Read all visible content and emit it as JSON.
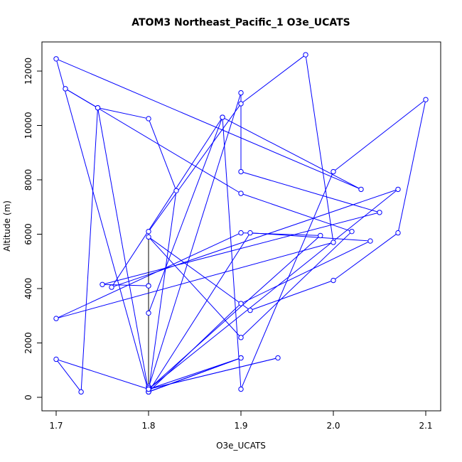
{
  "chart_data": {
    "type": "line",
    "title": "ATOM3 Northeast_Pacific_1 O3e_UCATS",
    "xlabel": "O3e_UCATS",
    "ylabel": "Altitude (m)",
    "xlim": [
      1.7,
      2.1
    ],
    "ylim": [
      0,
      12500
    ],
    "x_ticks": [
      1.7,
      1.8,
      1.9,
      2.0,
      2.1
    ],
    "x_tick_labels": [
      "1.7",
      "1.8",
      "1.9",
      "2.0",
      "2.1"
    ],
    "y_ticks": [
      0,
      2000,
      4000,
      6000,
      8000,
      10000,
      12000
    ],
    "y_tick_labels": [
      "0",
      "2000",
      "4000",
      "6000",
      "8000",
      "10000",
      "12000"
    ],
    "grid": false,
    "legend": "none",
    "marker": "open-circle",
    "colors": {
      "series": "#0000ff",
      "vertical_segment": "#000000",
      "frame": "#000000"
    },
    "series": [
      {
        "x": [
          1.8,
          1.8,
          1.8,
          1.8,
          1.9,
          1.8,
          1.8,
          1.75,
          2.05,
          1.9,
          1.9,
          1.8,
          1.8,
          1.88,
          1.76,
          2.07,
          1.8,
          1.7,
          1.727,
          1.745,
          1.8,
          1.83,
          1.8,
          1.9,
          2.04,
          1.91,
          1.8,
          1.7,
          2.03,
          1.88,
          1.9,
          2.0,
          2.1,
          2.07,
          2.0,
          1.91,
          1.8,
          1.9,
          2.02,
          1.9,
          1.71,
          1.745,
          1.8,
          1.9,
          1.8,
          1.94,
          1.8,
          1.986,
          1.9,
          1.7,
          2.0,
          1.97,
          1.9,
          1.8,
          1.8
        ],
        "y": [
          200,
          300,
          400,
          200,
          1450,
          200,
          4100,
          4150,
          6800,
          8300,
          11200,
          350,
          3100,
          10300,
          4050,
          7650,
          300,
          1400,
          200,
          10650,
          10250,
          7600,
          200,
          3450,
          5750,
          6050,
          200,
          12450,
          7650,
          10300,
          300,
          8300,
          10950,
          6050,
          4300,
          3200,
          5900,
          2200,
          6100,
          7500,
          11350,
          10650,
          200,
          1450,
          300,
          1450,
          300,
          5950,
          6050,
          2900,
          5700,
          12600,
          10800,
          6100,
          4100
        ]
      }
    ]
  }
}
